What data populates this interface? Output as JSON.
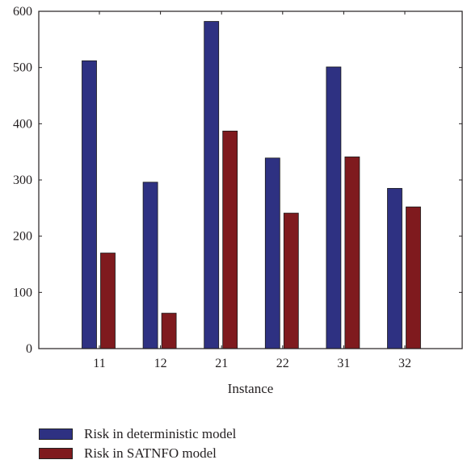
{
  "chart_data": {
    "type": "bar",
    "xlabel": "Instance",
    "ylabel": "",
    "title": "",
    "categories": [
      "11",
      "12",
      "21",
      "22",
      "31",
      "32"
    ],
    "ylim": [
      0,
      600
    ],
    "yticks": [
      "0",
      "100",
      "200",
      "300",
      "400",
      "500",
      "600"
    ],
    "series": [
      {
        "name": "Risk in deterministic model",
        "color": "#2e3182",
        "values": [
          512,
          296,
          582,
          339,
          501,
          285
        ]
      },
      {
        "name": "Risk in SATNFO model",
        "color": "#7f1a1e",
        "values": [
          170,
          63,
          387,
          241,
          341,
          252
        ]
      }
    ],
    "legend_position": "bottom-left",
    "grid": false
  }
}
